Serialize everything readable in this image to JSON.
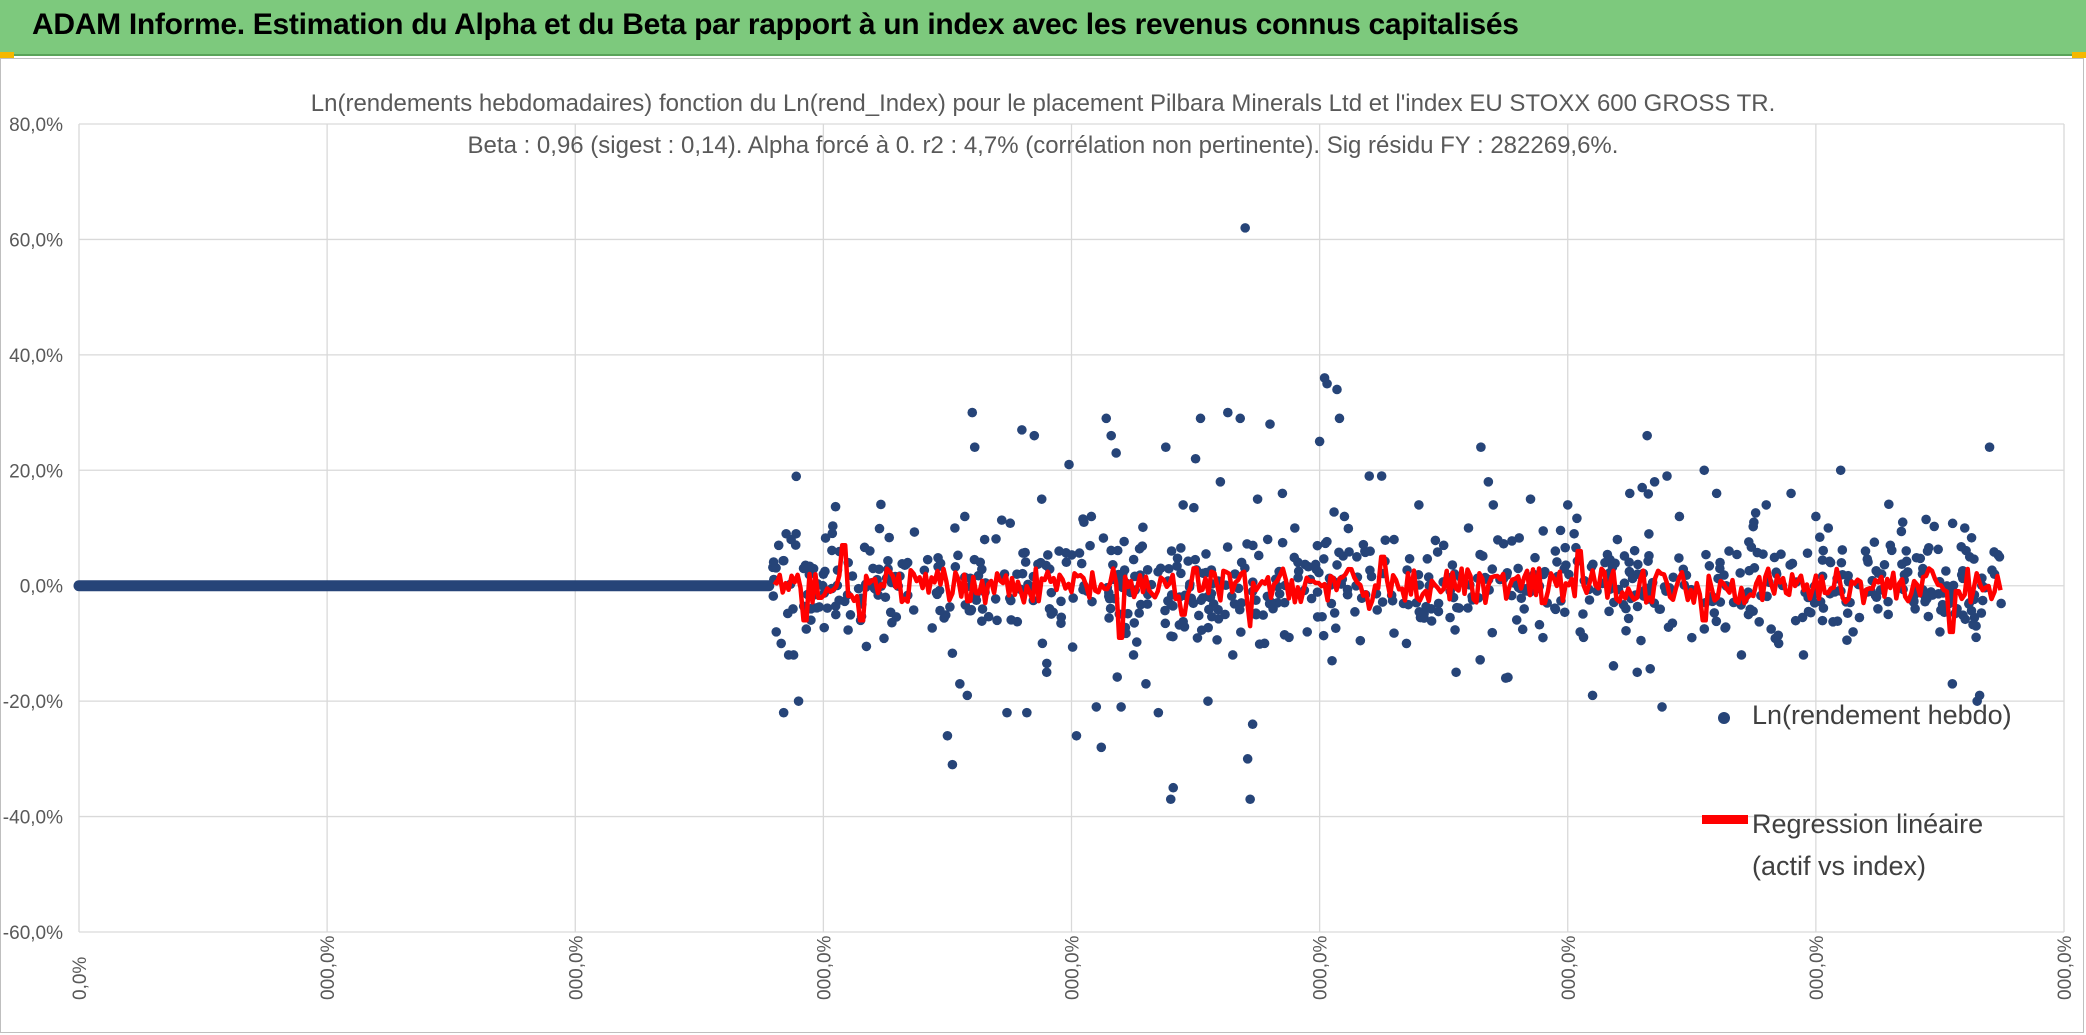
{
  "header": {
    "title": "ADAM Informe. Estimation du Alpha et du Beta par rapport à un index avec les revenus connus capitalisés"
  },
  "colors": {
    "header_bg": "#7dc97d",
    "scatter": "#264478",
    "regression": "#ff0000",
    "grid": "#d9d9d9",
    "axis_text": "#595959"
  },
  "chart_data": {
    "type": "scatter",
    "title_line1": "Ln(rendements hebdomadaires) fonction du Ln(rend_Index) pour le placement Pilbara Minerals Ltd et l'index EU STOXX 600 GROSS TR.",
    "title_line2": "Beta : 0,96 (sigest : 0,14). Alpha forcé à 0. r2 : 4,7% (corrélation non pertinente). Sig résidu FY : 282269,6%.",
    "beta": 0.96,
    "alpha": 0,
    "r2_percent": 4.7,
    "ylim": [
      -60,
      80
    ],
    "y_ticks": [
      80,
      60,
      40,
      20,
      0,
      -20,
      -40,
      -60
    ],
    "y_tick_labels": [
      "80,0%",
      "60,0%",
      "40,0%",
      "20,0%",
      "0,0%",
      "-20,0%",
      "-40,0%",
      "-60,0%"
    ],
    "x_ticks": [
      0,
      1,
      2,
      3,
      4,
      5,
      6,
      7,
      8
    ],
    "x_tick_labels": [
      "0,0%",
      "000,0%",
      "000,0%",
      "000,0%",
      "000,0%",
      "000,0%",
      "000,0%",
      "000,0%",
      "000,0%"
    ],
    "grid": true,
    "legend_position": "right",
    "series": [
      {
        "name": "Ln(rendement hebdo)",
        "kind": "scatter",
        "flat_segment": {
          "x_start": 0,
          "x_end": 2.78,
          "y": 0
        },
        "points": [
          [
            2.81,
            -8
          ],
          [
            2.82,
            7
          ],
          [
            2.83,
            -10
          ],
          [
            2.84,
            -22
          ],
          [
            2.85,
            9
          ],
          [
            2.86,
            -12
          ],
          [
            2.87,
            8
          ],
          [
            2.88,
            -12
          ],
          [
            2.89,
            9
          ],
          [
            2.9,
            -20
          ],
          [
            2.92,
            3
          ],
          [
            2.95,
            -4
          ],
          [
            3.0,
            2
          ],
          [
            3.05,
            -5
          ],
          [
            3.1,
            4
          ],
          [
            3.15,
            -6
          ],
          [
            3.2,
            3
          ],
          [
            3.25,
            -2
          ],
          [
            3.5,
            -26
          ],
          [
            3.52,
            -31
          ],
          [
            3.53,
            10
          ],
          [
            3.55,
            -17
          ],
          [
            3.57,
            12
          ],
          [
            3.58,
            -19
          ],
          [
            3.6,
            30
          ],
          [
            3.61,
            24
          ],
          [
            3.65,
            8
          ],
          [
            3.7,
            -6
          ],
          [
            3.74,
            -22
          ],
          [
            3.8,
            27
          ],
          [
            3.82,
            -22
          ],
          [
            3.85,
            26
          ],
          [
            3.88,
            15
          ],
          [
            3.9,
            -15
          ],
          [
            3.95,
            6
          ],
          [
            3.99,
            21
          ],
          [
            4.02,
            -26
          ],
          [
            4.05,
            11
          ],
          [
            4.08,
            12
          ],
          [
            4.1,
            -21
          ],
          [
            4.12,
            -28
          ],
          [
            4.14,
            29
          ],
          [
            4.16,
            26
          ],
          [
            4.18,
            23
          ],
          [
            4.2,
            -21
          ],
          [
            4.25,
            -12
          ],
          [
            4.3,
            -17
          ],
          [
            4.35,
            -22
          ],
          [
            4.38,
            24
          ],
          [
            4.4,
            -37
          ],
          [
            4.41,
            -35
          ],
          [
            4.45,
            14
          ],
          [
            4.5,
            22
          ],
          [
            4.52,
            29
          ],
          [
            4.55,
            -20
          ],
          [
            4.6,
            18
          ],
          [
            4.63,
            30
          ],
          [
            4.65,
            -12
          ],
          [
            4.7,
            62
          ],
          [
            4.68,
            29
          ],
          [
            4.72,
            -37
          ],
          [
            4.71,
            -30
          ],
          [
            4.73,
            -24
          ],
          [
            4.75,
            15
          ],
          [
            4.8,
            28
          ],
          [
            4.85,
            16
          ],
          [
            4.9,
            10
          ],
          [
            4.95,
            -8
          ],
          [
            5.0,
            25
          ],
          [
            5.02,
            36
          ],
          [
            5.03,
            35
          ],
          [
            5.05,
            -13
          ],
          [
            5.07,
            34
          ],
          [
            5.08,
            29
          ],
          [
            5.1,
            12
          ],
          [
            5.15,
            5
          ],
          [
            5.2,
            19
          ],
          [
            5.25,
            19
          ],
          [
            5.3,
            8
          ],
          [
            5.35,
            -10
          ],
          [
            5.4,
            14
          ],
          [
            5.45,
            -4
          ],
          [
            5.5,
            7
          ],
          [
            5.55,
            -15
          ],
          [
            5.6,
            10
          ],
          [
            5.65,
            24
          ],
          [
            5.68,
            18
          ],
          [
            5.7,
            14
          ],
          [
            5.75,
            -16
          ],
          [
            5.8,
            3
          ],
          [
            5.85,
            15
          ],
          [
            5.9,
            -9
          ],
          [
            5.95,
            6
          ],
          [
            6.0,
            14
          ],
          [
            6.05,
            -8
          ],
          [
            6.1,
            -19
          ],
          [
            6.15,
            4
          ],
          [
            6.2,
            8
          ],
          [
            6.25,
            16
          ],
          [
            6.28,
            -15
          ],
          [
            6.3,
            17
          ],
          [
            6.32,
            26
          ],
          [
            6.35,
            18
          ],
          [
            6.38,
            -21
          ],
          [
            6.4,
            19
          ],
          [
            6.45,
            12
          ],
          [
            6.5,
            -9
          ],
          [
            6.55,
            20
          ],
          [
            6.6,
            16
          ],
          [
            6.65,
            6
          ],
          [
            6.7,
            -12
          ],
          [
            6.75,
            11
          ],
          [
            6.8,
            14
          ],
          [
            6.85,
            -10
          ],
          [
            6.9,
            16
          ],
          [
            6.95,
            -12
          ],
          [
            7.0,
            12
          ],
          [
            7.05,
            10
          ],
          [
            7.1,
            20
          ],
          [
            7.15,
            -8
          ],
          [
            7.2,
            6
          ],
          [
            7.25,
            -4
          ],
          [
            7.3,
            7
          ],
          [
            7.35,
            11
          ],
          [
            7.4,
            -4
          ],
          [
            7.45,
            6
          ],
          [
            7.5,
            -8
          ],
          [
            7.55,
            -17
          ],
          [
            7.6,
            10
          ],
          [
            7.62,
            5
          ],
          [
            7.65,
            -20
          ],
          [
            7.66,
            -19
          ],
          [
            7.7,
            24
          ],
          [
            7.72,
            2
          ],
          [
            7.74,
            5
          ]
        ]
      },
      {
        "name": "Regression linéaire (actif vs index)",
        "kind": "line",
        "x_start": 2.8,
        "x_end": 7.75,
        "typical_amplitude": 3,
        "dips": [
          [
            2.93,
            -6
          ],
          [
            3.08,
            -8
          ],
          [
            3.15,
            -6
          ],
          [
            4.2,
            -9
          ],
          [
            4.45,
            -5
          ],
          [
            4.72,
            -7
          ],
          [
            5.2,
            -4
          ],
          [
            5.9,
            -3
          ],
          [
            6.05,
            -14
          ],
          [
            6.55,
            -6
          ],
          [
            7.55,
            -8
          ]
        ],
        "peaks": [
          [
            3.08,
            7
          ],
          [
            4.5,
            3
          ],
          [
            5.25,
            5
          ],
          [
            6.05,
            6
          ]
        ]
      }
    ]
  },
  "legend": {
    "item1_label": "Ln(rendement hebdo)",
    "item2_label": "Regression linéaire (actif vs index)"
  }
}
